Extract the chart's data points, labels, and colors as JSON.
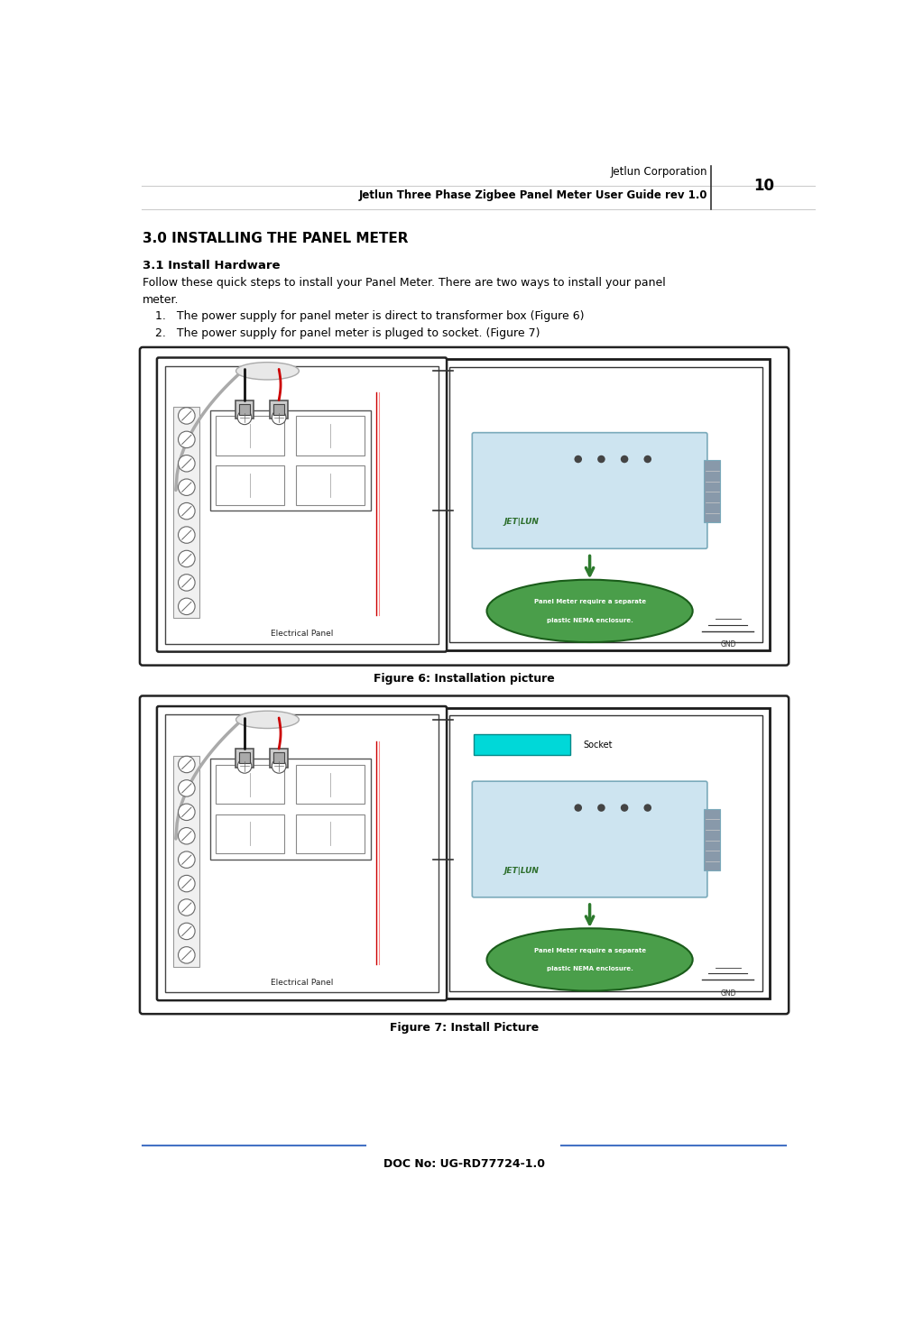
{
  "page_width": 10.04,
  "page_height": 14.69,
  "bg_color": "#ffffff",
  "header_right_text1": "Jetlun Corporation",
  "header_right_text2": "Jetlun Three Phase Zigbee Panel Meter User Guide rev 1.0",
  "header_page_num": "10",
  "section_title": "3.0 INSTALLING THE PANEL METER",
  "subsection_title": "3.1 Install Hardware",
  "body_line1": "Follow these quick steps to install your Panel Meter. There are two ways to install your panel",
  "body_line2": "meter.",
  "list_item1": "1.   The power supply for panel meter is direct to transformer box (Figure 6)",
  "list_item2": "2.   The power supply for panel meter is pluged to socket. (Figure 7)",
  "figure6_caption": "Figure 6: Installation picture",
  "figure7_caption": "Figure 7: Install Picture",
  "footer_doc": "DOC No: UG-RD77724-1.0",
  "footer_line_color": "#4472c4",
  "device_fill_color": "#cde4f0",
  "green_oval_color": "#4a9e4a",
  "cyan_rect_color": "#00d8d8",
  "red_wire_color": "#cc0000",
  "dark_green_color": "#2d7a2d",
  "connector_color": "#666666",
  "panel_border": "#333333",
  "breaker_fill": "#e8e8e8",
  "breaker_border": "#888888"
}
